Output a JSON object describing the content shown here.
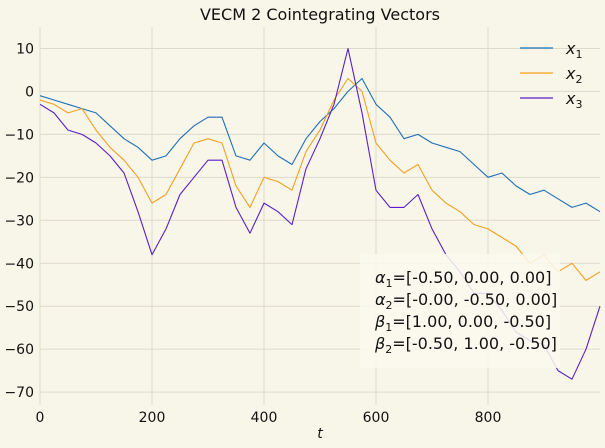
{
  "chart_data": {
    "type": "line",
    "title": "VECM 2 Cointegrating Vectors",
    "xlabel": "t",
    "ylabel": "",
    "xlim": [
      0,
      1000
    ],
    "ylim": [
      -73,
      15
    ],
    "xticks": [
      0,
      200,
      400,
      600,
      800
    ],
    "yticks": [
      10,
      0,
      -10,
      -20,
      -30,
      -40,
      -50,
      -60,
      -70
    ],
    "grid": true,
    "legend_position": "top-right",
    "legend": [
      {
        "label": "x",
        "sub": "1",
        "color": "#1f6fb8"
      },
      {
        "label": "x",
        "sub": "2",
        "color": "#f2a01e"
      },
      {
        "label": "x",
        "sub": "3",
        "color": "#5a1fc9"
      }
    ],
    "series": [
      {
        "name": "x1",
        "color": "#1f6fb8",
        "x": [
          0,
          25,
          50,
          75,
          100,
          125,
          150,
          175,
          200,
          225,
          250,
          275,
          300,
          325,
          350,
          375,
          400,
          425,
          450,
          475,
          500,
          525,
          550,
          575,
          600,
          625,
          650,
          675,
          700,
          725,
          750,
          775,
          800,
          825,
          850,
          875,
          900,
          925,
          950,
          975,
          1000
        ],
        "y": [
          -1,
          -2,
          -3,
          -4,
          -5,
          -8,
          -11,
          -13,
          -16,
          -15,
          -11,
          -8,
          -6,
          -6,
          -15,
          -16,
          -12,
          -15,
          -17,
          -11,
          -7,
          -4,
          0,
          3,
          -3,
          -6,
          -11,
          -10,
          -12,
          -13,
          -14,
          -17,
          -20,
          -19,
          -22,
          -24,
          -23,
          -25,
          -27,
          -26,
          -28
        ]
      },
      {
        "name": "x2",
        "color": "#f2a01e",
        "x": [
          0,
          25,
          50,
          75,
          100,
          125,
          150,
          175,
          200,
          225,
          250,
          275,
          300,
          325,
          350,
          375,
          400,
          425,
          450,
          475,
          500,
          525,
          550,
          575,
          600,
          625,
          650,
          675,
          700,
          725,
          750,
          775,
          800,
          825,
          850,
          875,
          900,
          925,
          950,
          975,
          1000
        ],
        "y": [
          -2,
          -3,
          -5,
          -4,
          -9,
          -13,
          -16,
          -20,
          -26,
          -24,
          -18,
          -12,
          -11,
          -12,
          -22,
          -27,
          -20,
          -21,
          -23,
          -14,
          -9,
          -2,
          3,
          0,
          -12,
          -16,
          -19,
          -17,
          -23,
          -26,
          -28,
          -31,
          -32,
          -34,
          -36,
          -40,
          -38,
          -42,
          -40,
          -44,
          -42
        ]
      },
      {
        "name": "x3",
        "color": "#5a1fc9",
        "x": [
          0,
          25,
          50,
          75,
          100,
          125,
          150,
          175,
          200,
          225,
          250,
          275,
          300,
          325,
          350,
          375,
          400,
          425,
          450,
          475,
          500,
          525,
          550,
          575,
          600,
          625,
          650,
          675,
          700,
          725,
          750,
          775,
          800,
          825,
          850,
          875,
          900,
          925,
          950,
          975,
          1000
        ],
        "y": [
          -3,
          -5,
          -9,
          -10,
          -12,
          -15,
          -19,
          -28,
          -38,
          -32,
          -24,
          -20,
          -16,
          -16,
          -27,
          -33,
          -26,
          -28,
          -31,
          -18,
          -11,
          -3,
          10,
          -5,
          -23,
          -27,
          -27,
          -24,
          -32,
          -38,
          -42,
          -47,
          -47,
          -51,
          -56,
          -58,
          -59,
          -65,
          -67,
          -60,
          -50
        ]
      }
    ],
    "annotation": [
      {
        "sym": "α",
        "sub": "1",
        "text": "=[-0.50, 0.00, 0.00]"
      },
      {
        "sym": "α",
        "sub": "2",
        "text": "=[-0.00, -0.50, 0.00]"
      },
      {
        "sym": "β",
        "sub": "1",
        "text": "=[1.00, 0.00, -0.50]"
      },
      {
        "sym": "β",
        "sub": "2",
        "text": "=[-0.50, 1.00, -0.50]"
      }
    ]
  }
}
